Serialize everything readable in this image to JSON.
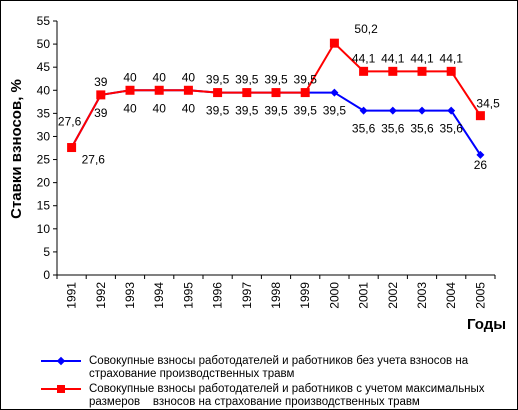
{
  "chart_data": {
    "type": "line",
    "title": "",
    "xlabel": "Годы",
    "ylabel": "Ставки взносов, %",
    "ylim": [
      0,
      55
    ],
    "yticks": [
      0,
      5,
      10,
      15,
      20,
      25,
      30,
      35,
      40,
      45,
      50,
      55
    ],
    "categories": [
      "1991",
      "1992",
      "1993",
      "1994",
      "1995",
      "1996",
      "1997",
      "1998",
      "1999",
      "2000",
      "2001",
      "2002",
      "2003",
      "2004",
      "2005"
    ],
    "series": [
      {
        "name": "Совокупные взносы работодателей и работников без учета взносов на страхование производственных травм",
        "color": "#0000FF",
        "marker": "diamond",
        "values": [
          27.6,
          39,
          40,
          40,
          40,
          39.5,
          39.5,
          39.5,
          39.5,
          39.5,
          35.6,
          35.6,
          35.6,
          35.6,
          26
        ],
        "labels": [
          "27,6",
          "39",
          "40",
          "40",
          "40",
          "39,5",
          "39,5",
          "39,5",
          "39,5",
          "39,5",
          "35,6",
          "35,6",
          "35,6",
          "35,6",
          "26"
        ]
      },
      {
        "name": "Совокупные взносы работодателей и работников с учетом максимальных размеров    взносов на страхование производственных травм",
        "color": "#FF0000",
        "marker": "square",
        "values": [
          27.6,
          39,
          40,
          40,
          40,
          39.5,
          39.5,
          39.5,
          39.5,
          50.2,
          44.1,
          44.1,
          44.1,
          44.1,
          34.5
        ],
        "labels": [
          "27,6",
          "39",
          "40",
          "40",
          "40",
          "39,5",
          "39,5",
          "39,5",
          "39,5",
          "50,2",
          "44,1",
          "44,1",
          "44,1",
          "44,1",
          "34,5"
        ]
      }
    ],
    "legend_position": "bottom",
    "grid": false
  }
}
